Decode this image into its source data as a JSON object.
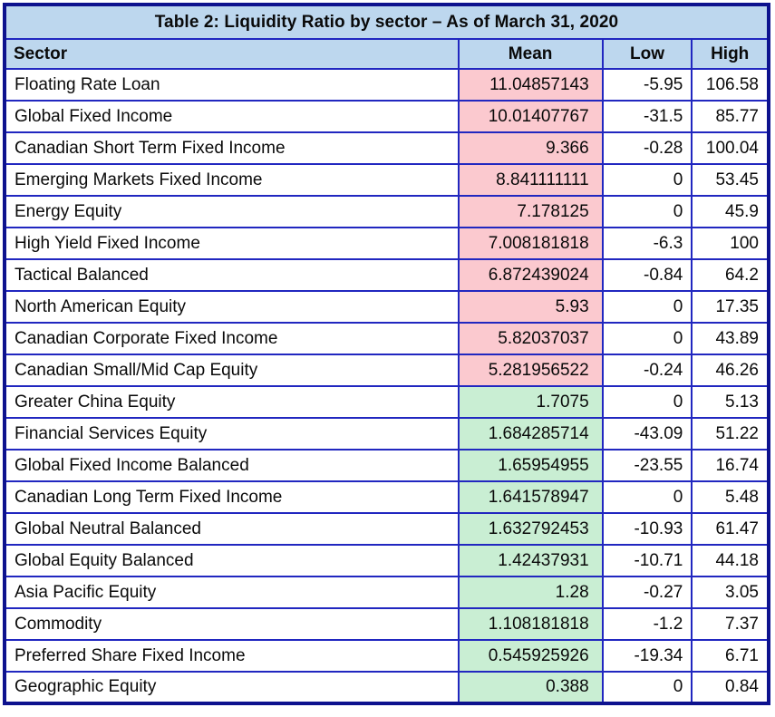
{
  "table": {
    "title": "Table 2: Liquidity Ratio by sector – As of March 31, 2020",
    "columns": [
      "Sector",
      "Mean",
      "Low",
      "High"
    ],
    "rows": [
      {
        "sector": "Floating Rate Loan",
        "mean": "11.04857143",
        "low": "-5.95",
        "high": "106.58",
        "band": "high"
      },
      {
        "sector": "Global Fixed Income",
        "mean": "10.01407767",
        "low": "-31.5",
        "high": "85.77",
        "band": "high"
      },
      {
        "sector": "Canadian Short Term Fixed Income",
        "mean": "9.366",
        "low": "-0.28",
        "high": "100.04",
        "band": "high"
      },
      {
        "sector": "Emerging Markets Fixed Income",
        "mean": "8.841111111",
        "low": "0",
        "high": "53.45",
        "band": "high"
      },
      {
        "sector": "Energy Equity",
        "mean": "7.178125",
        "low": "0",
        "high": "45.9",
        "band": "high"
      },
      {
        "sector": "High Yield Fixed Income",
        "mean": "7.008181818",
        "low": "-6.3",
        "high": "100",
        "band": "high"
      },
      {
        "sector": "Tactical Balanced",
        "mean": "6.872439024",
        "low": "-0.84",
        "high": "64.2",
        "band": "high"
      },
      {
        "sector": "North American Equity",
        "mean": "5.93",
        "low": "0",
        "high": "17.35",
        "band": "high"
      },
      {
        "sector": "Canadian Corporate Fixed Income",
        "mean": "5.82037037",
        "low": "0",
        "high": "43.89",
        "band": "high"
      },
      {
        "sector": "Canadian Small/Mid Cap Equity",
        "mean": "5.281956522",
        "low": "-0.24",
        "high": "46.26",
        "band": "high"
      },
      {
        "sector": "Greater China Equity",
        "mean": "1.7075",
        "low": "0",
        "high": "5.13",
        "band": "low"
      },
      {
        "sector": "Financial Services Equity",
        "mean": "1.684285714",
        "low": "-43.09",
        "high": "51.22",
        "band": "low"
      },
      {
        "sector": "Global Fixed Income Balanced",
        "mean": "1.65954955",
        "low": "-23.55",
        "high": "16.74",
        "band": "low"
      },
      {
        "sector": "Canadian Long Term Fixed Income",
        "mean": "1.641578947",
        "low": "0",
        "high": "5.48",
        "band": "low"
      },
      {
        "sector": "Global Neutral Balanced",
        "mean": "1.632792453",
        "low": "-10.93",
        "high": "61.47",
        "band": "low"
      },
      {
        "sector": "Global Equity Balanced",
        "mean": "1.42437931",
        "low": "-10.71",
        "high": "44.18",
        "band": "low"
      },
      {
        "sector": "Asia Pacific Equity",
        "mean": "1.28",
        "low": "-0.27",
        "high": "3.05",
        "band": "low"
      },
      {
        "sector": "Commodity",
        "mean": "1.108181818",
        "low": "-1.2",
        "high": "7.37",
        "band": "low"
      },
      {
        "sector": "Preferred Share Fixed Income",
        "mean": "0.545925926",
        "low": "-19.34",
        "high": "6.71",
        "band": "low"
      },
      {
        "sector": "Geographic Equity",
        "mean": "0.388",
        "low": "0",
        "high": "0.84",
        "band": "low"
      }
    ]
  },
  "colors": {
    "header_fill": "#BDD7EE",
    "outer_border": "#0D128E",
    "inner_border": "#2127C0",
    "mean_high_fill": "#FBC9CF",
    "mean_high_text": "#9C0006",
    "mean_low_fill": "#C9EED3",
    "mean_low_text": "#1B7A3D",
    "body_text": "#0A0A0A"
  },
  "chart_data": {
    "type": "table",
    "title": "Table 2: Liquidity Ratio by sector – As of March 31, 2020",
    "columns": [
      "Sector",
      "Mean",
      "Low",
      "High"
    ],
    "rows": [
      [
        "Floating Rate Loan",
        11.04857143,
        -5.95,
        106.58
      ],
      [
        "Global Fixed Income",
        10.01407767,
        -31.5,
        85.77
      ],
      [
        "Canadian Short Term Fixed Income",
        9.366,
        -0.28,
        100.04
      ],
      [
        "Emerging Markets Fixed Income",
        8.841111111,
        0,
        53.45
      ],
      [
        "Energy Equity",
        7.178125,
        0,
        45.9
      ],
      [
        "High Yield Fixed Income",
        7.008181818,
        -6.3,
        100
      ],
      [
        "Tactical Balanced",
        6.872439024,
        -0.84,
        64.2
      ],
      [
        "North American Equity",
        5.93,
        0,
        17.35
      ],
      [
        "Canadian Corporate Fixed Income",
        5.82037037,
        0,
        43.89
      ],
      [
        "Canadian Small/Mid Cap Equity",
        5.281956522,
        -0.24,
        46.26
      ],
      [
        "Greater China Equity",
        1.7075,
        0,
        5.13
      ],
      [
        "Financial Services Equity",
        1.684285714,
        -43.09,
        51.22
      ],
      [
        "Global Fixed Income Balanced",
        1.65954955,
        -23.55,
        16.74
      ],
      [
        "Canadian Long Term Fixed Income",
        1.641578947,
        0,
        5.48
      ],
      [
        "Global Neutral Balanced",
        1.632792453,
        -10.93,
        61.47
      ],
      [
        "Global Equity Balanced",
        1.42437931,
        -10.71,
        44.18
      ],
      [
        "Asia Pacific Equity",
        1.28,
        -0.27,
        3.05
      ],
      [
        "Commodity",
        1.108181818,
        -1.2,
        7.37
      ],
      [
        "Preferred Share Fixed Income",
        0.545925926,
        -19.34,
        6.71
      ],
      [
        "Geographic Equity",
        0.388,
        0,
        0.84
      ]
    ],
    "conditional_formatting": {
      "column": "Mean",
      "high_band_rows": "rows 1-10 (mean >= 5.28): light red fill, dark red text",
      "low_band_rows": "rows 11-20 (mean <= 1.71): light green fill, dark green text"
    },
    "legend_position": "none",
    "grid": true
  }
}
